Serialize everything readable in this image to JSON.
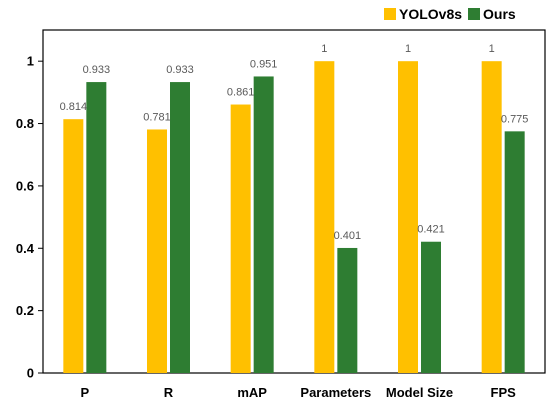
{
  "chart_data": {
    "type": "bar",
    "categories": [
      "P",
      "R",
      "mAP",
      "Parameters",
      "Model Size",
      "FPS"
    ],
    "series": [
      {
        "name": "YOLOv8s",
        "color": "#FFC000",
        "values": [
          0.814,
          0.781,
          0.861,
          1,
          1,
          1
        ],
        "labels": [
          "0.814",
          "0.781",
          "0.861",
          "1",
          "1",
          "1"
        ]
      },
      {
        "name": "Ours",
        "color": "#2E7D32",
        "values": [
          0.933,
          0.933,
          0.951,
          0.401,
          0.421,
          0.775
        ],
        "labels": [
          "0.933",
          "0.933",
          "0.951",
          "0.401",
          "0.421",
          "0.775"
        ]
      }
    ],
    "y_ticks": [
      0,
      0.2,
      0.4,
      0.6,
      0.8,
      1
    ],
    "y_tick_labels": [
      "0",
      "0.2",
      "0.4",
      "0.6",
      "0.8",
      "1"
    ],
    "ylim": [
      0,
      1.1
    ],
    "grid": false,
    "legend_position": "top-right",
    "title": "",
    "xlabel": "",
    "ylabel": ""
  }
}
